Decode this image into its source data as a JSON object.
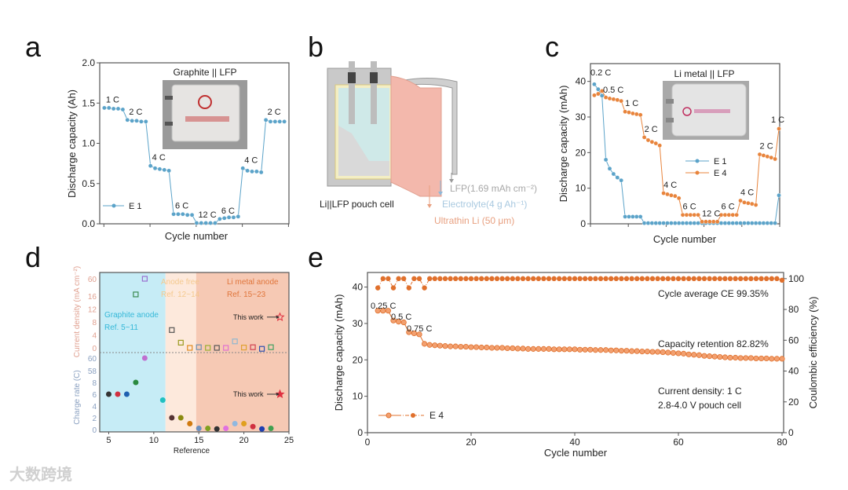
{
  "panel_letters": {
    "a": "a",
    "b": "b",
    "c": "c",
    "d": "d",
    "e": "e"
  },
  "watermark": "大数跨境",
  "diagram_b": {
    "caption": "Li||LFP pouch cell",
    "layers": [
      "LFP(1.69 mAh cm⁻²)",
      "Electrolyte(4 g Ah⁻¹)",
      "Ultrathin Li (50 μm)"
    ],
    "colors": {
      "lfp": "#a8a8a8",
      "electrolyte": "#a9c9e0",
      "li": "#e8a080",
      "pink": "#f3b8ac",
      "teal": "#cfe9e8"
    }
  },
  "chart_data": [
    {
      "id": "a",
      "type": "line",
      "title": "Graphite || LFP",
      "xlabel": "Cycle number",
      "ylabel": "Discharge capacity (Ah)",
      "xlim": [
        0,
        41
      ],
      "ylim": [
        0,
        2.0
      ],
      "yticks": [
        "0.0",
        "0.5",
        "1.0",
        "1.5",
        "2.0"
      ],
      "color": "#5ba3c9",
      "series": [
        {
          "name": "E 1",
          "values": [
            1.44,
            1.44,
            1.43,
            1.43,
            1.42,
            1.29,
            1.28,
            1.28,
            1.27,
            1.27,
            0.72,
            0.69,
            0.68,
            0.67,
            0.66,
            0.12,
            0.12,
            0.12,
            0.11,
            0.11,
            0.01,
            0.01,
            0.01,
            0.01,
            0.01,
            0.06,
            0.07,
            0.08,
            0.08,
            0.09,
            0.69,
            0.66,
            0.65,
            0.65,
            0.64,
            1.29,
            1.27,
            1.27,
            1.27,
            1.27
          ]
        }
      ],
      "rate_labels": [
        "1 C",
        "2 C",
        "4 C",
        "6 C",
        "12 C",
        "6 C",
        "4 C",
        "2 C"
      ]
    },
    {
      "id": "c",
      "type": "line",
      "title": "Li metal || LFP",
      "xlabel": "Cycle number",
      "ylabel": "Discharge capacity (mAh)",
      "xlim": [
        0,
        49.2
      ],
      "ylim": [
        0,
        45
      ],
      "yticks": [
        "0",
        "10",
        "20",
        "30",
        "40"
      ],
      "series": [
        {
          "name": "E 1",
          "color": "#5ba3c9",
          "values": [
            39.2,
            37.8,
            36.0,
            18.0,
            15.5,
            14.0,
            13.0,
            12.2,
            2,
            2,
            2,
            2,
            2,
            0.2,
            0.2,
            0.2,
            0.2,
            0.2,
            0.2,
            0.2,
            0.2,
            0.2,
            0.2,
            0.2,
            0.2,
            0.2,
            0.2,
            0.2,
            0.2,
            0.2,
            0.2,
            0.2,
            0.2,
            0.2,
            0.2,
            0.2,
            0.2,
            0.2,
            0.2,
            0.2,
            0.2,
            0.2,
            0.2,
            0.2,
            0.2,
            0.2,
            0.2,
            0.2,
            8.0
          ]
        },
        {
          "name": "E 4",
          "color": "#e8843c",
          "values": [
            36.1,
            36.5,
            37.3,
            35.5,
            35.2,
            35.0,
            34.8,
            34.5,
            31.5,
            31.3,
            31.0,
            30.8,
            30.6,
            24.3,
            23.5,
            23.0,
            22.6,
            22.0,
            8.6,
            8.3,
            8.0,
            7.8,
            7.2,
            2.5,
            2.5,
            2.5,
            2.5,
            2.5,
            0.6,
            0.6,
            0.6,
            0.6,
            0.6,
            2.5,
            2.5,
            2.5,
            2.5,
            2.5,
            6.5,
            6.0,
            5.8,
            5.6,
            5.3,
            19.5,
            19.2,
            18.9,
            18.6,
            18.2,
            26.7
          ]
        }
      ],
      "rate_labels": [
        "0.2 C",
        "0.5 C",
        "1 C",
        "2 C",
        "4 C",
        "6 C",
        "12 C",
        "6 C",
        "4 C",
        "2 C",
        "1 C"
      ]
    },
    {
      "id": "d",
      "type": "scatter",
      "xlabel": "Reference",
      "ylabel_top": "Current density (mA cm⁻²)",
      "ylabel_bottom": "Charge rate (C)",
      "xlim": [
        4,
        25
      ],
      "xticks": [
        "5",
        "10",
        "15",
        "20",
        "25"
      ],
      "yticks_top": [
        "0",
        "4",
        "8",
        "12",
        "16",
        "60"
      ],
      "yticks_bottom": [
        "0",
        "2",
        "4",
        "6",
        "8",
        "58",
        "60"
      ],
      "regions": [
        {
          "label": "Graphite anode",
          "refs": "Ref. 5~11",
          "range": [
            4,
            11.3
          ],
          "color": "#c6ecf6",
          "text_color": "#35b8d8"
        },
        {
          "label": "Anode free",
          "refs": "Ref. 12~14",
          "range": [
            11.3,
            14.7
          ],
          "color": "#fde9dc",
          "text_color": "#f4c98e"
        },
        {
          "label": "Li metal anode",
          "refs": "Ref. 15~23",
          "range": [
            14.7,
            25
          ],
          "color": "#f6c9b4",
          "text_color": "#e0763c"
        }
      ],
      "current_density": [
        {
          "ref": 8,
          "value": 16.5,
          "color": "#3a8a50"
        },
        {
          "ref": 9,
          "value": 60,
          "color": "#9a70d0"
        },
        {
          "ref": 12,
          "value": 5.5,
          "color": "#555555"
        },
        {
          "ref": 13,
          "value": 1.6,
          "color": "#9a9a20"
        },
        {
          "ref": 14,
          "value": 0,
          "color": "#e08a20"
        },
        {
          "ref": 15,
          "value": 0.2,
          "color": "#7090b0"
        },
        {
          "ref": 16,
          "value": 0,
          "color": "#9ab030"
        },
        {
          "ref": 17,
          "value": 0,
          "color": "#555555"
        },
        {
          "ref": 18,
          "value": 0,
          "color": "#e070d0"
        },
        {
          "ref": 19,
          "value": 2,
          "color": "#90b8d0"
        },
        {
          "ref": 20,
          "value": 0.1,
          "color": "#e0a030"
        },
        {
          "ref": 21,
          "value": 0.2,
          "color": "#d04050"
        },
        {
          "ref": 22,
          "value": -0.3,
          "color": "#3050b0"
        },
        {
          "ref": 23,
          "value": 0.2,
          "color": "#40a060"
        }
      ],
      "charge_rate": [
        {
          "ref": 5,
          "value": 6,
          "color": "#333333"
        },
        {
          "ref": 6,
          "value": 6,
          "color": "#d03040"
        },
        {
          "ref": 7,
          "value": 6,
          "color": "#2060b0"
        },
        {
          "ref": 8,
          "value": 8,
          "color": "#2a8a40"
        },
        {
          "ref": 9,
          "value": 60,
          "color": "#c070d0"
        },
        {
          "ref": 11,
          "value": 5,
          "color": "#20c0c0"
        },
        {
          "ref": 12,
          "value": 2,
          "color": "#553333"
        },
        {
          "ref": 13,
          "value": 2,
          "color": "#8a8a10"
        },
        {
          "ref": 14,
          "value": 1,
          "color": "#d07a10"
        },
        {
          "ref": 15,
          "value": 0.2,
          "color": "#6a90c0"
        },
        {
          "ref": 16,
          "value": 0.2,
          "color": "#80a020"
        },
        {
          "ref": 17,
          "value": 0.1,
          "color": "#333333"
        },
        {
          "ref": 18,
          "value": 0.2,
          "color": "#e070e0"
        },
        {
          "ref": 19,
          "value": 1,
          "color": "#90b8e0"
        },
        {
          "ref": 20,
          "value": 1,
          "color": "#e0a020"
        },
        {
          "ref": 21,
          "value": 0.5,
          "color": "#d03040"
        },
        {
          "ref": 22,
          "value": 0.1,
          "color": "#2040b0"
        },
        {
          "ref": 23,
          "value": 0.2,
          "color": "#40a050"
        }
      ],
      "this_work": {
        "label": "This work",
        "ref": 24,
        "current_density": 9.5,
        "charge_rate": 6,
        "color": "#e03040"
      }
    },
    {
      "id": "e",
      "type": "line",
      "xlabel": "Cycle number",
      "ylabel": "Discharge capacity (mAh)",
      "ylabel_right": "Coulombic efficiency (%)",
      "xlim": [
        0,
        80
      ],
      "ylim": [
        0,
        44
      ],
      "ylim_right": [
        0,
        104
      ],
      "xticks": [
        "0",
        "20",
        "40",
        "60",
        "80"
      ],
      "yticks": [
        "0",
        "10",
        "20",
        "30",
        "40"
      ],
      "yticks_right": [
        "0",
        "20",
        "40",
        "60",
        "80",
        "100"
      ],
      "color": "#e0702c",
      "legend": "E 4",
      "x_start": 2,
      "capacity": [
        33.5,
        33.5,
        33.5,
        30.8,
        30.5,
        30.3,
        27.6,
        27.3,
        27.0,
        24.4,
        24.1,
        24.0,
        23.9,
        23.8,
        23.7,
        23.7,
        23.6,
        23.6,
        23.5,
        23.5,
        23.4,
        23.4,
        23.3,
        23.3,
        23.3,
        23.2,
        23.2,
        23.1,
        23.1,
        23.0,
        23.0,
        23.0,
        23.0,
        23.0,
        22.9,
        22.9,
        22.9,
        22.9,
        22.9,
        22.8,
        22.8,
        22.8,
        22.7,
        22.7,
        22.7,
        22.6,
        22.6,
        22.5,
        22.5,
        22.4,
        22.4,
        22.3,
        22.3,
        22.2,
        22.2,
        22.1,
        22.0,
        21.9,
        21.8,
        21.7,
        21.5,
        21.4,
        21.3,
        21.1,
        21.0,
        20.9,
        20.8,
        20.7,
        20.6,
        20.6,
        20.5,
        20.5,
        20.5,
        20.4,
        20.4,
        20.4,
        20.3,
        20.3,
        20.3
      ],
      "coulombic_efficiency": [
        94,
        100,
        100,
        94,
        100,
        100,
        94,
        100,
        100,
        94,
        100,
        100,
        100,
        100,
        100,
        100,
        100,
        100,
        100,
        100,
        100,
        100,
        100,
        100,
        100,
        100,
        100,
        100,
        100,
        100,
        100,
        100,
        100,
        100,
        100,
        100,
        100,
        100,
        100,
        100,
        100,
        100,
        100,
        100,
        100,
        100,
        100,
        100,
        100,
        100,
        100,
        100,
        100,
        100,
        100,
        100,
        100,
        100,
        100,
        100,
        100,
        100,
        100,
        100,
        100,
        100,
        100,
        100,
        100,
        100,
        100,
        100,
        100,
        100,
        100,
        100,
        100,
        100,
        99
      ],
      "rate_labels": [
        "0.25 C",
        "0.5 C",
        "0.75 C"
      ],
      "annotations": {
        "ce": "Cycle average CE 99.35%",
        "retention": "Capacity retention 82.82%",
        "current": "Current density: 1 C",
        "voltage": "2.8-4.0 V pouch cell"
      }
    }
  ]
}
